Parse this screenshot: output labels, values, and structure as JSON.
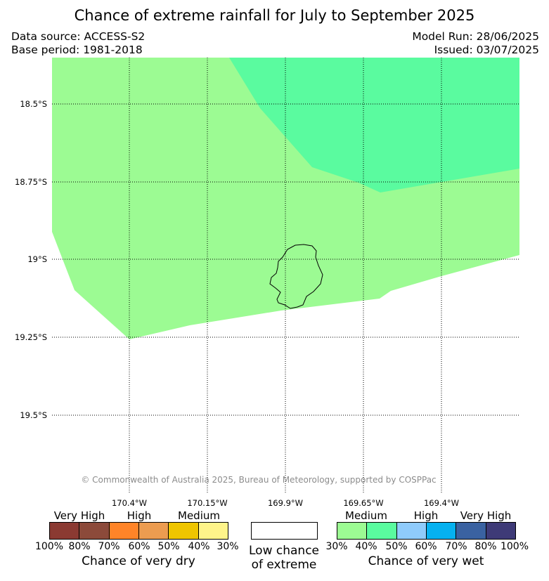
{
  "title": "Chance of extreme rainfall for July to September 2025",
  "data_source": "Data source: ACCESS-S2",
  "base_period": "Base period: 1981-2018",
  "model_run": "Model Run: 28/06/2025",
  "issued": "Issued: 03/07/2025",
  "copyright": "© Commonwealth of Australia 2025, Bureau of Meteorology, supported by COSPPac",
  "map": {
    "longitude_labels": [
      "170.4°W",
      "170.15°W",
      "169.9°W",
      "169.65°W",
      "169.4°W"
    ],
    "latitude_labels": [
      "18.5°S",
      "18.75°S",
      "19°S",
      "19.25°S",
      "19.5°S"
    ],
    "gridlines": "dotted",
    "regions": [
      {
        "category": "Medium chance of very wet (30–40%)",
        "color": "#9cfb93"
      },
      {
        "category": "Medium chance of very wet (40–50%)",
        "color": "#5afb9f"
      },
      {
        "category": "Low chance of extreme",
        "color": "#ffffff"
      }
    ]
  },
  "legend": {
    "dry": {
      "categories": [
        "Very High",
        "High",
        "Medium"
      ],
      "ticks": [
        "100%",
        "80%",
        "70%",
        "60%",
        "50%",
        "40%",
        "30%"
      ],
      "colors": [
        "#8b3a32",
        "#8c4a3a",
        "#ff8428",
        "#ec9c50",
        "#efc500",
        "#fef48a"
      ],
      "label": "Chance of very dry"
    },
    "low": {
      "line1": "Low chance",
      "line2": "of extreme"
    },
    "wet": {
      "categories": [
        "Medium",
        "High",
        "Very High"
      ],
      "ticks": [
        "30%",
        "40%",
        "50%",
        "60%",
        "70%",
        "80%",
        "100%"
      ],
      "colors": [
        "#9cfb93",
        "#5afb9f",
        "#8fcbfb",
        "#06b1f0",
        "#3a62a1",
        "#3e3a77"
      ],
      "label": "Chance of very wet"
    }
  }
}
